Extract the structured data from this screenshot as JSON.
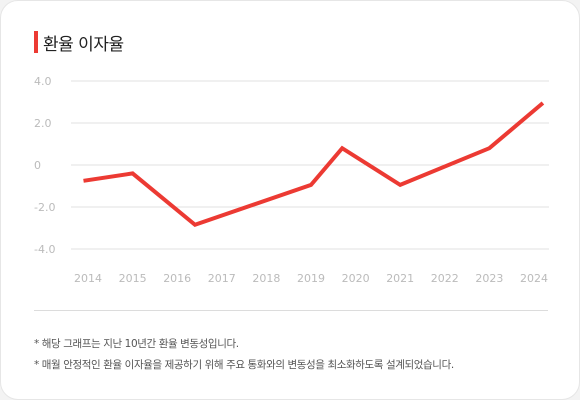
{
  "colors": {
    "accent": "#ec3a33",
    "grid": "#e2e2e2",
    "tick": "#bbbbbb"
  },
  "header": {
    "title": "환율 이자율"
  },
  "chart_data": {
    "type": "line",
    "title": "환율 이자율",
    "xlabel": "",
    "ylabel": "",
    "categories": [
      "2014",
      "2015",
      "2016",
      "2017",
      "2018",
      "2019",
      "2020",
      "2021",
      "2022",
      "2023",
      "2024"
    ],
    "y_ticks": [
      "4.0",
      "2.0",
      "0",
      "-2.0",
      "-4.0"
    ],
    "ylim": [
      -4,
      4
    ],
    "grid": true,
    "series": [
      {
        "x": [
          2013.9,
          2015.0,
          2016.4,
          2019.0,
          2019.7,
          2021.0,
          2023.0,
          2024.2
        ],
        "values": [
          -0.75,
          -0.4,
          -2.85,
          -0.95,
          0.8,
          -0.95,
          0.8,
          2.95
        ]
      }
    ]
  },
  "footnotes": [
    "* 해당 그래프는 지난 10년간 환율 변동성입니다.",
    "* 매월 안정적인 환율 이자율을 제공하기 위해 주요 통화와의 변동성을 최소화하도록 설계되었습니다."
  ]
}
